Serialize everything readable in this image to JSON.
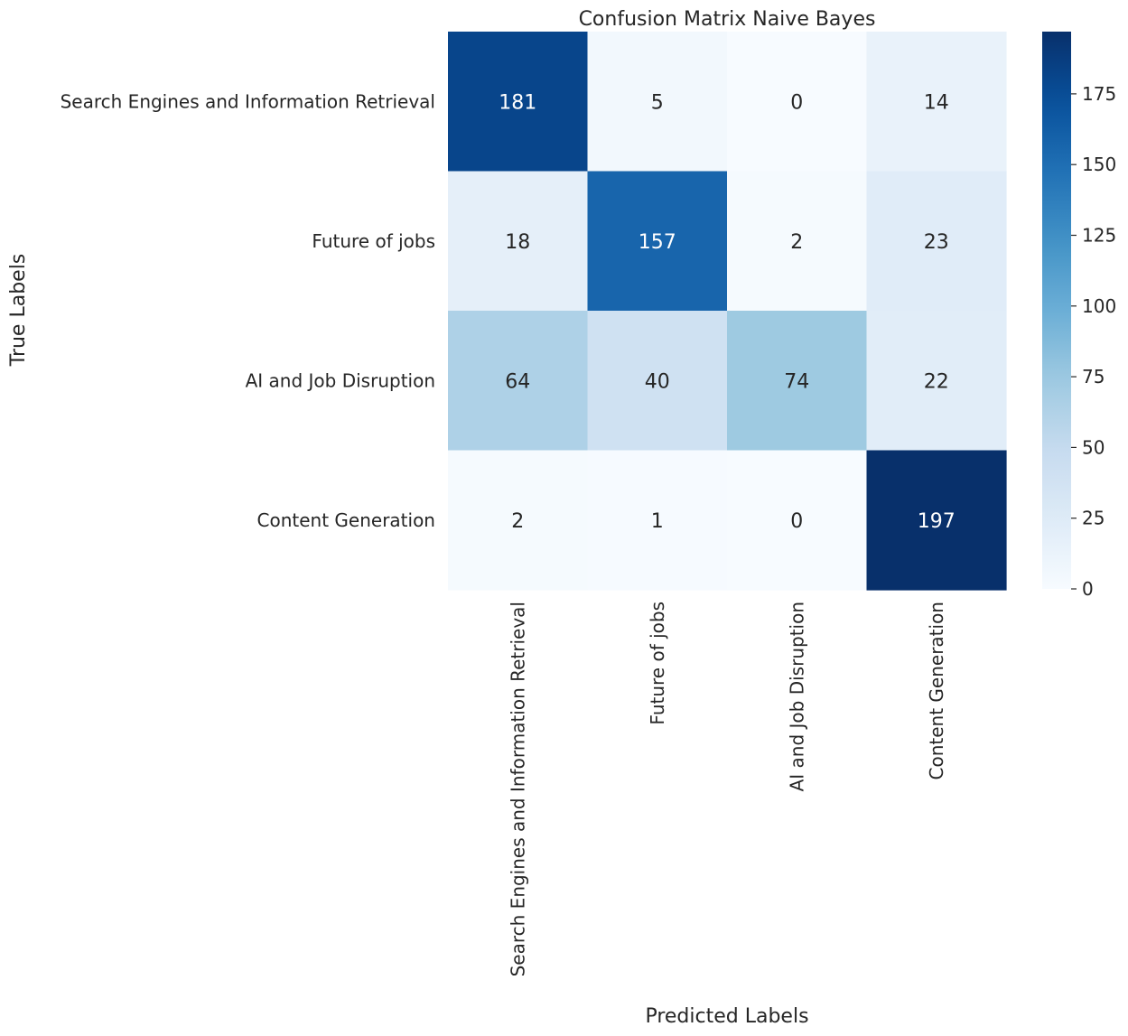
{
  "chart_data": {
    "type": "heatmap",
    "title": "Confusion Matrix Naive Bayes",
    "xlabel": "Predicted Labels",
    "ylabel": "True Labels",
    "x_categories": [
      "Search Engines and Information Retrieval",
      "Future of jobs",
      "AI and Job Disruption",
      "Content Generation"
    ],
    "y_categories": [
      "Search Engines and Information Retrieval",
      "Future of jobs",
      "AI and Job Disruption",
      "Content Generation"
    ],
    "values": [
      [
        181,
        5,
        0,
        14
      ],
      [
        18,
        157,
        2,
        23
      ],
      [
        64,
        40,
        74,
        22
      ],
      [
        2,
        1,
        0,
        197
      ]
    ],
    "colormap": "Blues",
    "vmin": 0,
    "vmax": 197,
    "colorbar_ticks": [
      0,
      25,
      50,
      75,
      100,
      125,
      150,
      175
    ]
  }
}
